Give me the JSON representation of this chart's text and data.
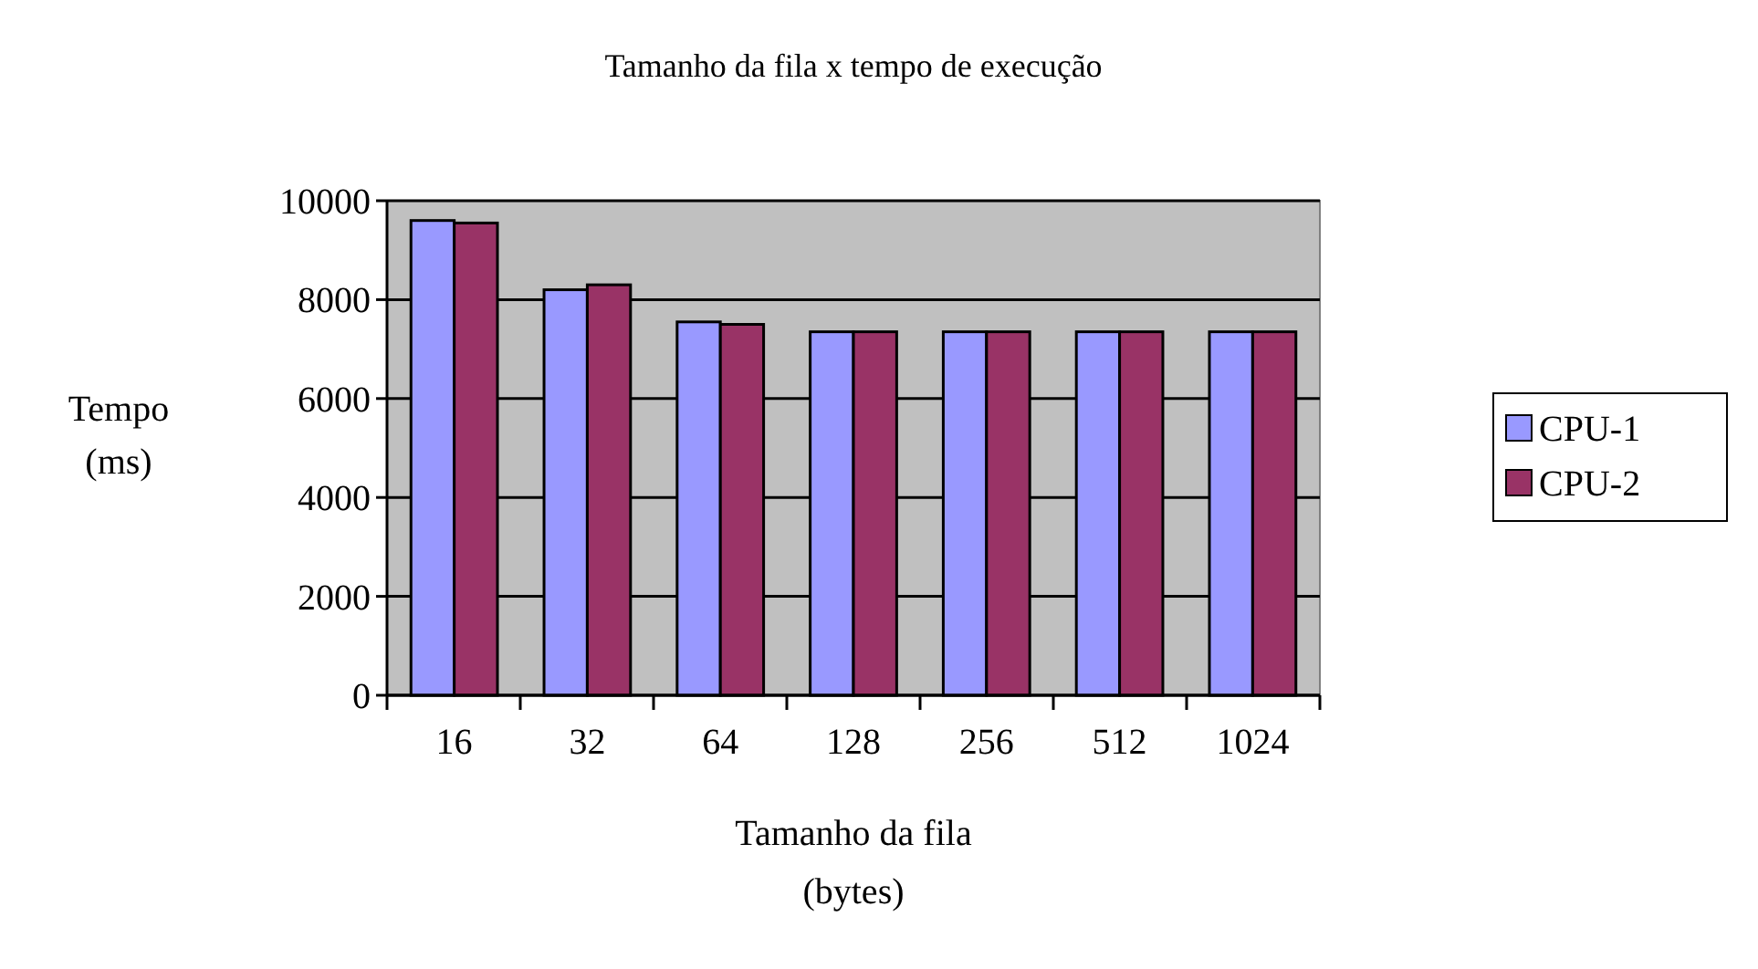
{
  "chart_data": {
    "type": "bar",
    "title": "Tamanho da fila x tempo de execução",
    "xlabel": "Tamanho da fila\n(bytes)",
    "ylabel": "Tempo\n(ms)",
    "categories": [
      "16",
      "32",
      "64",
      "128",
      "256",
      "512",
      "1024"
    ],
    "series": [
      {
        "name": "CPU-1",
        "color": "#9999ff",
        "values": [
          9600,
          8200,
          7550,
          7350,
          7350,
          7350,
          7350
        ]
      },
      {
        "name": "CPU-2",
        "color": "#993366",
        "values": [
          9550,
          8300,
          7500,
          7350,
          7350,
          7350,
          7350
        ]
      }
    ],
    "ylim": [
      0,
      10000
    ],
    "yticks": [
      0,
      2000,
      4000,
      6000,
      8000,
      10000
    ],
    "grid": "y",
    "legend": "right"
  }
}
